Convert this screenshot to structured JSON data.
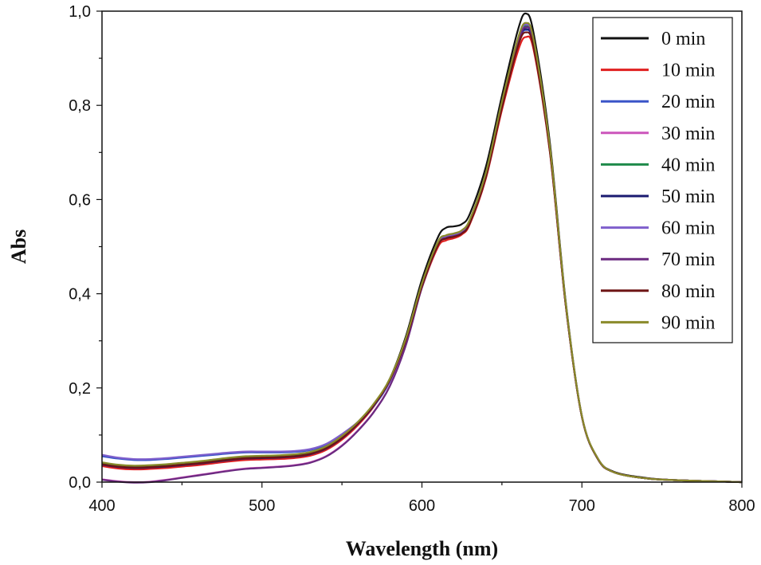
{
  "chart_data": {
    "type": "line",
    "title": "",
    "xlabel": "Wavelength (nm)",
    "ylabel": "Abs",
    "xlim": [
      400,
      800
    ],
    "ylim": [
      0.0,
      1.0
    ],
    "x_ticks": [
      400,
      500,
      600,
      700,
      800
    ],
    "x_tick_labels": [
      "400",
      "500",
      "600",
      "700",
      "800"
    ],
    "y_ticks": [
      0.0,
      0.2,
      0.4,
      0.6,
      0.8,
      1.0
    ],
    "y_tick_labels": [
      "0,0",
      "0,2",
      "0,4",
      "0,6",
      "0,8",
      "1,0"
    ],
    "grid": false,
    "legend_position": "top-right",
    "x": [
      400,
      410,
      420,
      430,
      440,
      450,
      460,
      470,
      480,
      490,
      500,
      510,
      520,
      530,
      540,
      550,
      560,
      570,
      580,
      590,
      600,
      610,
      615,
      620,
      625,
      630,
      640,
      650,
      660,
      665,
      670,
      680,
      690,
      700,
      710,
      720,
      740,
      760,
      780,
      800
    ],
    "series": [
      {
        "name": "0 min",
        "color": "#111111",
        "values": [
          0.036,
          0.031,
          0.029,
          0.03,
          0.032,
          0.035,
          0.038,
          0.042,
          0.046,
          0.049,
          0.05,
          0.051,
          0.053,
          0.058,
          0.07,
          0.093,
          0.125,
          0.165,
          0.22,
          0.31,
          0.43,
          0.52,
          0.54,
          0.543,
          0.548,
          0.57,
          0.67,
          0.82,
          0.96,
          0.995,
          0.95,
          0.72,
          0.38,
          0.14,
          0.05,
          0.022,
          0.009,
          0.004,
          0.002,
          0.0
        ]
      },
      {
        "name": "10 min",
        "color": "#e02020",
        "values": [
          0.034,
          0.029,
          0.027,
          0.028,
          0.03,
          0.033,
          0.036,
          0.04,
          0.044,
          0.047,
          0.048,
          0.049,
          0.051,
          0.056,
          0.068,
          0.09,
          0.121,
          0.161,
          0.215,
          0.3,
          0.413,
          0.499,
          0.513,
          0.518,
          0.526,
          0.548,
          0.645,
          0.79,
          0.915,
          0.945,
          0.915,
          0.7,
          0.372,
          0.138,
          0.049,
          0.021,
          0.008,
          0.004,
          0.002,
          0.0
        ]
      },
      {
        "name": "20 min",
        "color": "#3a55c8",
        "values": [
          0.055,
          0.05,
          0.047,
          0.047,
          0.049,
          0.052,
          0.055,
          0.058,
          0.061,
          0.063,
          0.063,
          0.063,
          0.064,
          0.068,
          0.079,
          0.1,
          0.126,
          0.162,
          0.214,
          0.3,
          0.418,
          0.506,
          0.52,
          0.523,
          0.53,
          0.553,
          0.65,
          0.8,
          0.93,
          0.96,
          0.925,
          0.705,
          0.375,
          0.139,
          0.049,
          0.021,
          0.008,
          0.004,
          0.002,
          0.0
        ]
      },
      {
        "name": "30 min",
        "color": "#cc55bb",
        "values": [
          0.006,
          0.002,
          0.0,
          0.001,
          0.005,
          0.01,
          0.015,
          0.02,
          0.025,
          0.029,
          0.031,
          0.033,
          0.036,
          0.042,
          0.055,
          0.078,
          0.11,
          0.15,
          0.205,
          0.292,
          0.415,
          0.505,
          0.52,
          0.524,
          0.531,
          0.553,
          0.65,
          0.8,
          0.935,
          0.97,
          0.932,
          0.708,
          0.374,
          0.139,
          0.049,
          0.021,
          0.008,
          0.004,
          0.002,
          0.0
        ]
      },
      {
        "name": "40 min",
        "color": "#1f8a4a",
        "values": [
          0.04,
          0.035,
          0.033,
          0.034,
          0.036,
          0.039,
          0.042,
          0.046,
          0.05,
          0.053,
          0.054,
          0.055,
          0.057,
          0.062,
          0.074,
          0.096,
          0.127,
          0.166,
          0.219,
          0.305,
          0.42,
          0.508,
          0.522,
          0.526,
          0.533,
          0.556,
          0.655,
          0.805,
          0.938,
          0.968,
          0.93,
          0.708,
          0.375,
          0.139,
          0.049,
          0.021,
          0.008,
          0.004,
          0.002,
          0.0
        ]
      },
      {
        "name": "50 min",
        "color": "#1a1a70",
        "values": [
          0.037,
          0.032,
          0.03,
          0.031,
          0.033,
          0.036,
          0.039,
          0.043,
          0.047,
          0.05,
          0.051,
          0.052,
          0.054,
          0.059,
          0.071,
          0.093,
          0.124,
          0.163,
          0.216,
          0.302,
          0.418,
          0.506,
          0.52,
          0.524,
          0.531,
          0.553,
          0.652,
          0.8,
          0.932,
          0.962,
          0.926,
          0.705,
          0.374,
          0.139,
          0.049,
          0.021,
          0.008,
          0.004,
          0.002,
          0.0
        ]
      },
      {
        "name": "60 min",
        "color": "#7f5fcc",
        "values": [
          0.058,
          0.052,
          0.049,
          0.049,
          0.051,
          0.054,
          0.057,
          0.06,
          0.063,
          0.065,
          0.065,
          0.065,
          0.066,
          0.07,
          0.081,
          0.102,
          0.128,
          0.164,
          0.216,
          0.302,
          0.42,
          0.508,
          0.522,
          0.526,
          0.533,
          0.556,
          0.655,
          0.805,
          0.938,
          0.972,
          0.934,
          0.71,
          0.376,
          0.14,
          0.05,
          0.021,
          0.008,
          0.004,
          0.002,
          0.0
        ]
      },
      {
        "name": "70 min",
        "color": "#6b2a80",
        "values": [
          0.005,
          0.001,
          -0.001,
          0.0,
          0.004,
          0.009,
          0.014,
          0.019,
          0.024,
          0.028,
          0.03,
          0.032,
          0.035,
          0.041,
          0.054,
          0.077,
          0.109,
          0.149,
          0.204,
          0.291,
          0.413,
          0.503,
          0.518,
          0.522,
          0.529,
          0.551,
          0.648,
          0.798,
          0.932,
          0.966,
          0.93,
          0.706,
          0.373,
          0.139,
          0.049,
          0.021,
          0.008,
          0.004,
          0.002,
          0.0
        ]
      },
      {
        "name": "80 min",
        "color": "#6e1515",
        "values": [
          0.038,
          0.033,
          0.031,
          0.032,
          0.034,
          0.037,
          0.04,
          0.044,
          0.048,
          0.051,
          0.052,
          0.053,
          0.055,
          0.06,
          0.072,
          0.094,
          0.125,
          0.164,
          0.217,
          0.302,
          0.416,
          0.503,
          0.517,
          0.521,
          0.528,
          0.55,
          0.648,
          0.795,
          0.925,
          0.955,
          0.92,
          0.702,
          0.373,
          0.139,
          0.049,
          0.021,
          0.008,
          0.004,
          0.002,
          0.0
        ]
      },
      {
        "name": "90 min",
        "color": "#8a8a2a",
        "values": [
          0.042,
          0.037,
          0.035,
          0.036,
          0.038,
          0.041,
          0.044,
          0.048,
          0.052,
          0.055,
          0.056,
          0.057,
          0.059,
          0.064,
          0.076,
          0.098,
          0.128,
          0.167,
          0.22,
          0.306,
          0.422,
          0.51,
          0.524,
          0.528,
          0.535,
          0.558,
          0.657,
          0.808,
          0.942,
          0.975,
          0.937,
          0.712,
          0.377,
          0.14,
          0.05,
          0.021,
          0.008,
          0.004,
          0.002,
          0.0
        ]
      }
    ]
  }
}
